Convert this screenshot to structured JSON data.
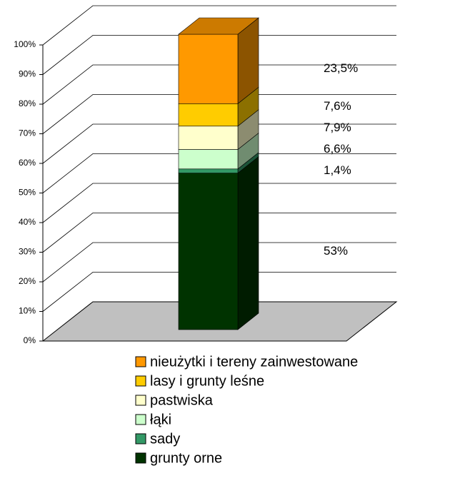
{
  "chart_data": {
    "type": "stacked-bar-3d",
    "categories": [
      null
    ],
    "series": [
      {
        "name": "grunty orne",
        "color": "#003300",
        "values": [
          53
        ],
        "value_labels": [
          "53%"
        ]
      },
      {
        "name": "sady",
        "color": "#339966",
        "values": [
          1.4
        ],
        "value_labels": [
          "1,4%"
        ]
      },
      {
        "name": "łąki",
        "color": "#ccffcc",
        "values": [
          6.6
        ],
        "value_labels": [
          "6,6%"
        ]
      },
      {
        "name": "pastwiska",
        "color": "#ffffcc",
        "values": [
          7.9
        ],
        "value_labels": [
          "7,9%"
        ]
      },
      {
        "name": "lasy i grunty leśne",
        "color": "#ffcc00",
        "values": [
          7.6
        ],
        "value_labels": [
          "7,6%"
        ]
      },
      {
        "name": "nieużytki i tereny zainwestowane",
        "color": "#ff9900",
        "values": [
          23.5
        ],
        "value_labels": [
          "23,5%"
        ]
      }
    ],
    "ylim": [
      0,
      100
    ],
    "yticks": [
      {
        "value": 0,
        "label": "0%"
      },
      {
        "value": 10,
        "label": "10%"
      },
      {
        "value": 20,
        "label": "20%"
      },
      {
        "value": 30,
        "label": "30%"
      },
      {
        "value": 40,
        "label": "40%"
      },
      {
        "value": 50,
        "label": "50%"
      },
      {
        "value": 60,
        "label": "60%"
      },
      {
        "value": 70,
        "label": "70%"
      },
      {
        "value": 80,
        "label": "80%"
      },
      {
        "value": 90,
        "label": "90%"
      },
      {
        "value": 100,
        "label": "100%"
      }
    ],
    "grid": true
  }
}
